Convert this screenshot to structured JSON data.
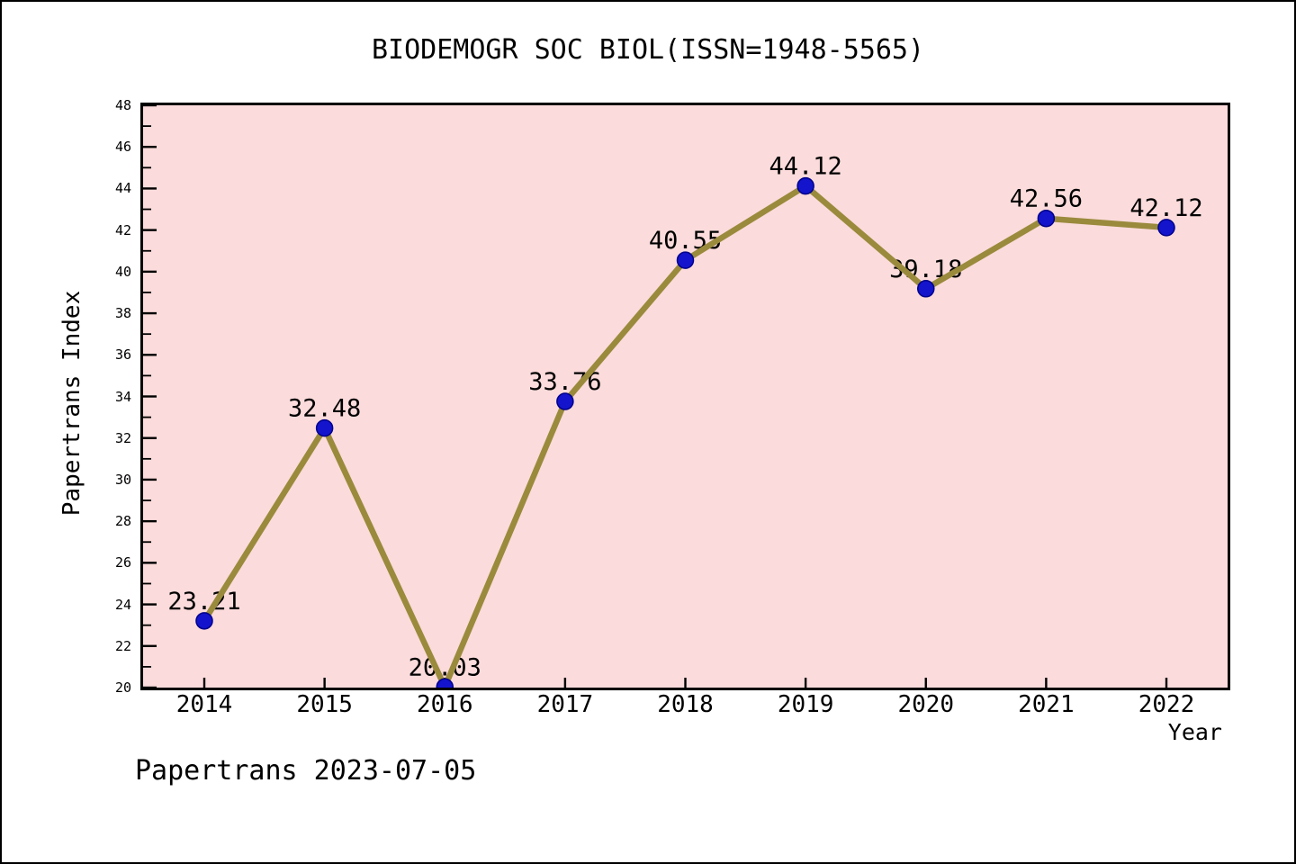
{
  "chart_data": {
    "type": "line",
    "title": "BIODEMOGR SOC BIOL(ISSN=1948-5565)",
    "xlabel": "Year",
    "ylabel": "Papertrans Index",
    "footer": "Papertrans 2023-07-05",
    "x": [
      2014,
      2015,
      2016,
      2017,
      2018,
      2019,
      2020,
      2021,
      2022
    ],
    "series": [
      {
        "name": "Papertrans Index",
        "values": [
          23.21,
          32.48,
          20.03,
          33.76,
          40.55,
          44.12,
          39.18,
          42.56,
          42.12
        ]
      }
    ],
    "ylim": [
      20,
      48
    ],
    "ytick_step": 2,
    "ytick_minor_step": 1,
    "grid": false,
    "legend": "none",
    "point_labels": true,
    "colors": {
      "line": "#9a8a3c",
      "marker_fill": "#1414cc",
      "marker_edge": "#00008b",
      "plot_background": "#fbdbdb",
      "axis": "#000000",
      "text": "#000000"
    }
  }
}
